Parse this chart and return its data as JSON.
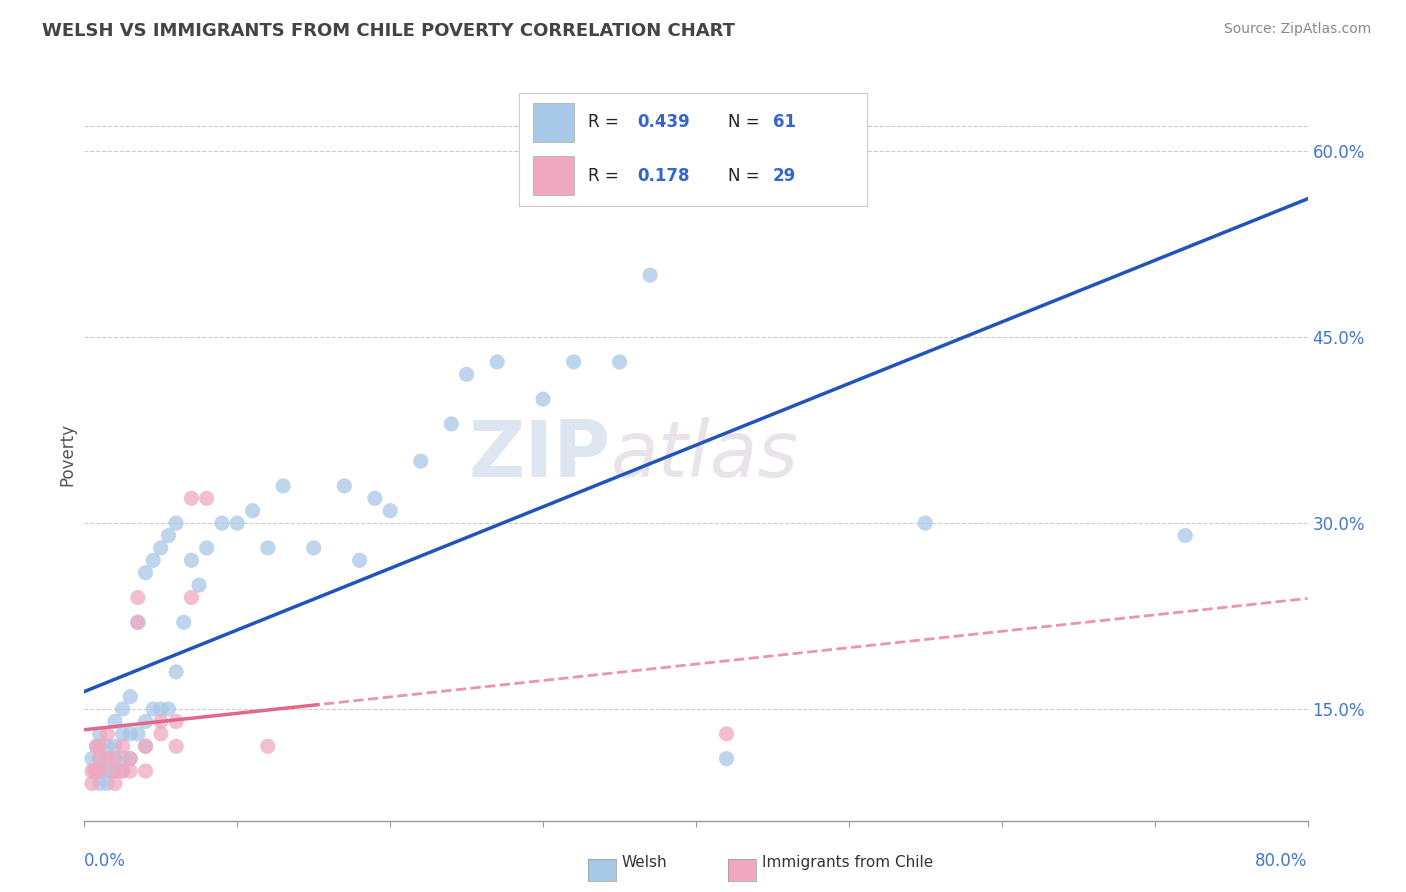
{
  "title": "WELSH VS IMMIGRANTS FROM CHILE POVERTY CORRELATION CHART",
  "source": "Source: ZipAtlas.com",
  "ylabel": "Poverty",
  "ytick_labels": [
    "15.0%",
    "30.0%",
    "45.0%",
    "60.0%"
  ],
  "ytick_values": [
    0.15,
    0.3,
    0.45,
    0.6
  ],
  "xmin": 0.0,
  "xmax": 0.8,
  "ymin": 0.06,
  "ymax": 0.65,
  "R_welsh": "0.439",
  "N_welsh": "61",
  "R_chile": "0.178",
  "N_chile": "29",
  "welsh_color": "#a8c8e8",
  "chile_color": "#f0a8c0",
  "welsh_line_color": "#2255bb",
  "chile_line_color": "#e06888",
  "background_color": "#ffffff",
  "watermark_zip": "ZIP",
  "watermark_atlas": "atlas",
  "welsh_scatter_x": [
    0.005,
    0.007,
    0.008,
    0.01,
    0.01,
    0.01,
    0.01,
    0.015,
    0.015,
    0.015,
    0.015,
    0.018,
    0.02,
    0.02,
    0.02,
    0.02,
    0.025,
    0.025,
    0.025,
    0.025,
    0.03,
    0.03,
    0.03,
    0.035,
    0.035,
    0.04,
    0.04,
    0.04,
    0.045,
    0.045,
    0.05,
    0.05,
    0.055,
    0.055,
    0.06,
    0.06,
    0.065,
    0.07,
    0.075,
    0.08,
    0.09,
    0.1,
    0.11,
    0.12,
    0.13,
    0.15,
    0.17,
    0.18,
    0.19,
    0.2,
    0.22,
    0.24,
    0.25,
    0.27,
    0.3,
    0.32,
    0.35,
    0.37,
    0.42,
    0.55,
    0.72
  ],
  "welsh_scatter_y": [
    0.11,
    0.1,
    0.12,
    0.09,
    0.1,
    0.11,
    0.13,
    0.09,
    0.1,
    0.11,
    0.12,
    0.1,
    0.1,
    0.11,
    0.12,
    0.14,
    0.1,
    0.11,
    0.13,
    0.15,
    0.11,
    0.13,
    0.16,
    0.13,
    0.22,
    0.12,
    0.14,
    0.26,
    0.15,
    0.27,
    0.15,
    0.28,
    0.15,
    0.29,
    0.18,
    0.3,
    0.22,
    0.27,
    0.25,
    0.28,
    0.3,
    0.3,
    0.31,
    0.28,
    0.33,
    0.28,
    0.33,
    0.27,
    0.32,
    0.31,
    0.35,
    0.38,
    0.42,
    0.43,
    0.4,
    0.43,
    0.43,
    0.5,
    0.11,
    0.3,
    0.29
  ],
  "chile_scatter_x": [
    0.005,
    0.005,
    0.007,
    0.008,
    0.01,
    0.01,
    0.01,
    0.015,
    0.015,
    0.02,
    0.02,
    0.02,
    0.025,
    0.025,
    0.03,
    0.03,
    0.035,
    0.035,
    0.04,
    0.04,
    0.05,
    0.05,
    0.06,
    0.06,
    0.07,
    0.07,
    0.08,
    0.12,
    0.42
  ],
  "chile_scatter_y": [
    0.09,
    0.1,
    0.1,
    0.12,
    0.1,
    0.11,
    0.12,
    0.11,
    0.13,
    0.09,
    0.1,
    0.11,
    0.1,
    0.12,
    0.1,
    0.11,
    0.22,
    0.24,
    0.1,
    0.12,
    0.13,
    0.14,
    0.12,
    0.14,
    0.24,
    0.32,
    0.32,
    0.12,
    0.13
  ]
}
